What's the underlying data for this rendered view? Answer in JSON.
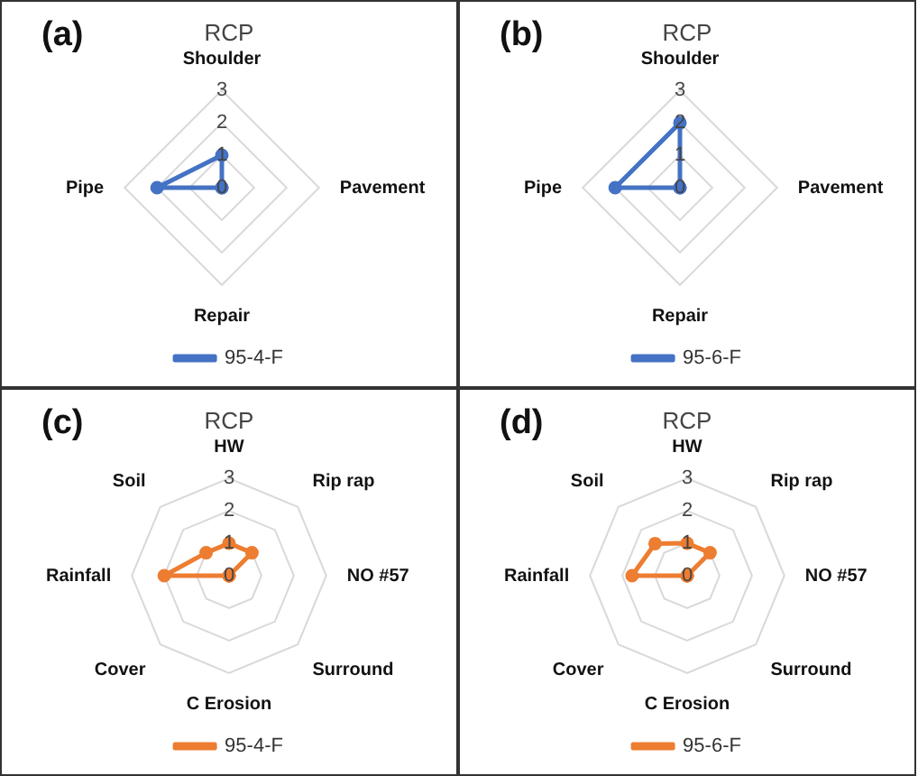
{
  "chart_data": [
    {
      "type": "radar",
      "title": "RCP",
      "annotations": [
        "(a)"
      ],
      "categories": [
        "Shoulder",
        "Pavement",
        "Repair",
        "Pipe"
      ],
      "ylim": [
        0,
        3
      ],
      "yticks": [
        0,
        1,
        2,
        3
      ],
      "grid": true,
      "legend": "bottom",
      "marker": "circle",
      "series": [
        {
          "name": "95-4-F",
          "color": "#4472c4",
          "values": [
            1,
            0,
            0,
            2
          ]
        }
      ]
    },
    {
      "type": "radar",
      "title": "RCP",
      "annotations": [
        "(b)"
      ],
      "categories": [
        "Shoulder",
        "Pavement",
        "Repair",
        "Pipe"
      ],
      "ylim": [
        0,
        3
      ],
      "yticks": [
        0,
        1,
        2,
        3
      ],
      "grid": true,
      "legend": "bottom",
      "marker": "circle",
      "series": [
        {
          "name": "95-6-F",
          "color": "#4472c4",
          "values": [
            2,
            0,
            0,
            2
          ]
        }
      ]
    },
    {
      "type": "radar",
      "title": "RCP",
      "annotations": [
        "(c)"
      ],
      "categories": [
        "HW",
        "Rip rap",
        "NO #57",
        "Surround",
        "C Erosion",
        "Cover",
        "Rainfall",
        "Soil"
      ],
      "ylim": [
        0,
        3
      ],
      "yticks": [
        0,
        1,
        2,
        3
      ],
      "grid": true,
      "legend": "bottom",
      "marker": "circle",
      "series": [
        {
          "name": "95-4-F",
          "color": "#ed7d31",
          "values": [
            1,
            1,
            0,
            0,
            0,
            0,
            2,
            1
          ]
        }
      ]
    },
    {
      "type": "radar",
      "title": "RCP",
      "annotations": [
        "(d)"
      ],
      "categories": [
        "HW",
        "Rip rap",
        "NO #57",
        "Surround",
        "C Erosion",
        "Cover",
        "Rainfall",
        "Soil"
      ],
      "ylim": [
        0,
        3
      ],
      "yticks": [
        0,
        1,
        2,
        3
      ],
      "grid": true,
      "legend": "bottom",
      "marker": "circle",
      "series": [
        {
          "name": "95-6-F",
          "color": "#ed7d31",
          "values": [
            1,
            1,
            0,
            0,
            0,
            0,
            1.7,
            1.4
          ]
        }
      ]
    }
  ]
}
